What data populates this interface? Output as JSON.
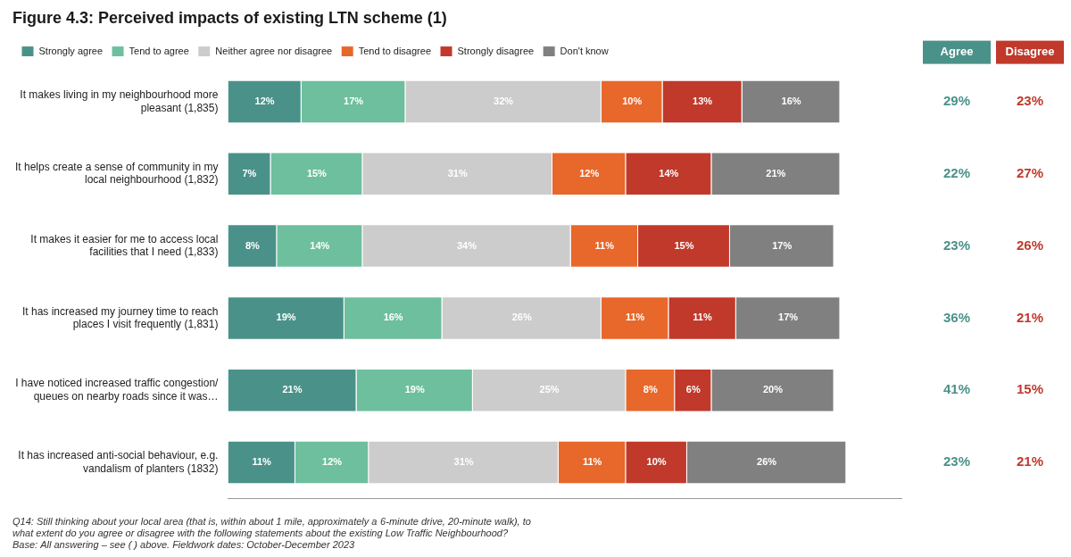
{
  "chart_data": {
    "type": "bar",
    "orientation": "horizontal",
    "stacked": true,
    "title": "Figure 4.3: Perceived impacts of existing LTN scheme (1)",
    "categories": [
      "It makes living in my neighbourhood more\npleasant (1,835)",
      "It helps create a sense of community in my\nlocal neighbourhood (1,832)",
      "It makes it easier for me to access local\nfacilities that I need (1,833)",
      "It has increased my journey time to reach\nplaces I visit frequently (1,831)",
      "I have noticed increased traffic congestion/\nqueues on nearby roads since it was…",
      "It has increased anti-social behaviour, e.g.\nvandalism of planters (1832)"
    ],
    "series": [
      {
        "name": "Strongly agree",
        "color": "#4a9289",
        "values": [
          12,
          7,
          8,
          19,
          21,
          11
        ],
        "value_labels": [
          "12%",
          "7%",
          "8%",
          "19%",
          "21%",
          "11%"
        ]
      },
      {
        "name": "Tend to agree",
        "color": "#6dbf9e",
        "values": [
          17,
          15,
          14,
          16,
          19,
          12
        ],
        "value_labels": [
          "17%",
          "15%",
          "14%",
          "16%",
          "19%",
          "12%"
        ]
      },
      {
        "name": "Neither agree nor disagree",
        "color": "#cccccc",
        "values": [
          32,
          31,
          34,
          26,
          25,
          31
        ],
        "value_labels": [
          "32%",
          "31%",
          "34%",
          "26%",
          "25%",
          "31%"
        ]
      },
      {
        "name": "Tend to disagree",
        "color": "#e8672a",
        "values": [
          10,
          12,
          11,
          11,
          8,
          11
        ],
        "value_labels": [
          "10%",
          "12%",
          "11%",
          "11%",
          "8%",
          "11%"
        ]
      },
      {
        "name": "Strongly disagree",
        "color": "#c0392b",
        "values": [
          13,
          14,
          15,
          11,
          6,
          10
        ],
        "value_labels": [
          "13%",
          "14%",
          "15%",
          "11%",
          "6%",
          "10%"
        ]
      },
      {
        "name": "Don't know",
        "color": "#808080",
        "values": [
          16,
          21,
          17,
          17,
          20,
          26
        ],
        "value_labels": [
          "16%",
          "21%",
          "17%",
          "17%",
          "20%",
          "26%"
        ]
      }
    ],
    "columns": [
      {
        "name": "Agree",
        "color": "#4a9289",
        "values": [
          29,
          22,
          23,
          36,
          41,
          23
        ],
        "value_labels": [
          "29%",
          "22%",
          "23%",
          "36%",
          "41%",
          "23%"
        ]
      },
      {
        "name": "Disagree",
        "color": "#c0392b",
        "values": [
          23,
          27,
          26,
          21,
          15,
          21
        ],
        "value_labels": [
          "23%",
          "27%",
          "26%",
          "21%",
          "15%",
          "21%"
        ]
      }
    ],
    "xlim": [
      0,
      110
    ],
    "grid": false,
    "legend": "top left",
    "data_labels": true,
    "tick_labels": "y",
    "footnote": "Q14: Still thinking about your local area (that is, within about 1 mile, approximately a⁠ 6-minute drive, 20-minute walk), to\nwhat extent do you agree or disagree with the following statements about the existing Low Traffic Neighbourhood?\nBase: All answering – see ( ) above. Fieldwork dates: October-December 2023"
  }
}
